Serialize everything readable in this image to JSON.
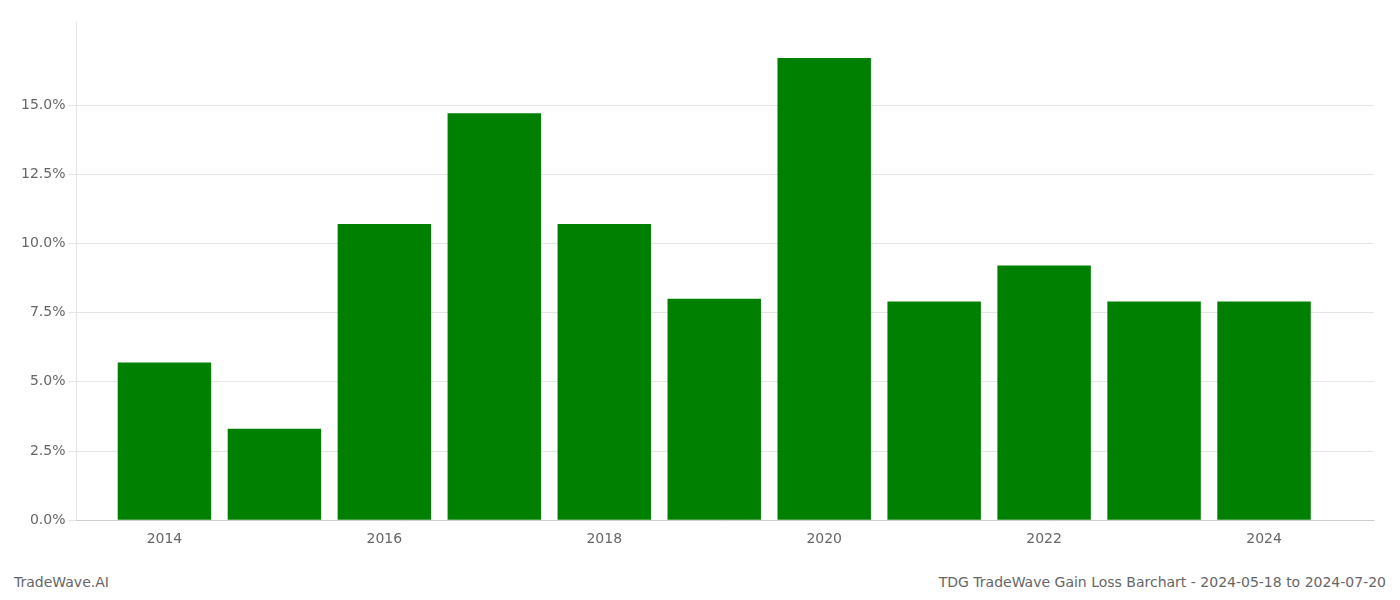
{
  "chart_data": {
    "type": "bar",
    "x": [
      2014,
      2015,
      2016,
      2017,
      2018,
      2019,
      2020,
      2021,
      2022,
      2023,
      2024
    ],
    "values": [
      0.057,
      0.033,
      0.107,
      0.147,
      0.107,
      0.08,
      0.167,
      0.079,
      0.092,
      0.079,
      0.079
    ],
    "color": "#008000",
    "xlim": [
      2013.2,
      2025.0
    ],
    "xticks": [
      2014,
      2016,
      2018,
      2020,
      2022,
      2024
    ],
    "ylim": [
      0,
      0.18
    ],
    "yticks": [
      {
        "value": 0.0,
        "label": "0.0%"
      },
      {
        "value": 0.025,
        "label": "2.5%"
      },
      {
        "value": 0.05,
        "label": "5.0%"
      },
      {
        "value": 0.075,
        "label": "7.5%"
      },
      {
        "value": 0.1,
        "label": "10.0%"
      },
      {
        "value": 0.125,
        "label": "12.5%"
      },
      {
        "value": 0.15,
        "label": "15.0%"
      }
    ],
    "grid": true,
    "annotations": [
      "TradeWave.AI",
      "TDG TradeWave Gain Loss Barchart - 2024-05-18 to 2024-07-20"
    ]
  }
}
